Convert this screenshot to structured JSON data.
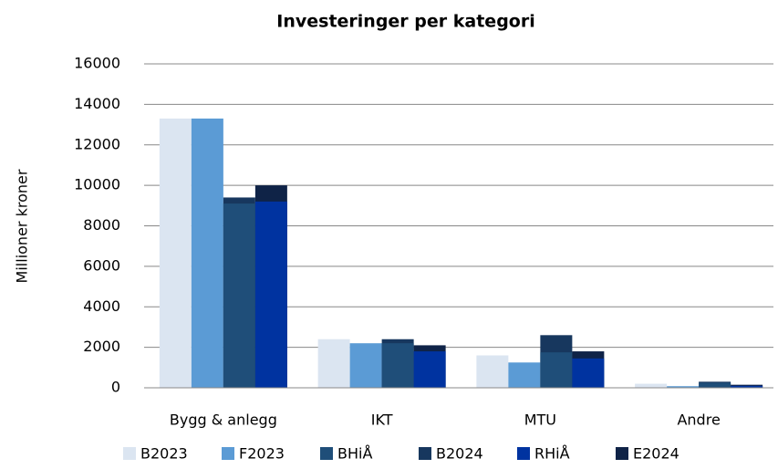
{
  "chart_data": {
    "type": "bar",
    "title": "Investeringer per kategori",
    "y_label": "Millioner kroner",
    "categories": [
      "Bygg & anlegg",
      "IKT",
      "MTU",
      "Andre"
    ],
    "series": [
      {
        "name": "B2023",
        "color": "#dbe5f1",
        "values": [
          13300,
          2400,
          1600,
          200
        ]
      },
      {
        "name": "F2023",
        "color": "#5b9bd5",
        "values": [
          13300,
          2200,
          1250,
          80
        ]
      },
      {
        "name": "BHiÅ",
        "color": "#1f4e79",
        "values": [
          9100,
          2200,
          1750,
          250
        ]
      },
      {
        "name": "B2024",
        "color": "#17375e",
        "values": [
          9400,
          2400,
          2600,
          300
        ]
      },
      {
        "name": "RHiÅ",
        "color": "#0033a0",
        "values": [
          9200,
          1800,
          1450,
          100
        ]
      },
      {
        "name": "E2024",
        "color": "#0f2347",
        "values": [
          10000,
          2100,
          1800,
          150
        ]
      }
    ],
    "ylim": [
      0,
      16000
    ],
    "yticks": [
      0,
      2000,
      4000,
      6000,
      8000,
      10000,
      12000,
      14000,
      16000
    ],
    "grid": true
  }
}
